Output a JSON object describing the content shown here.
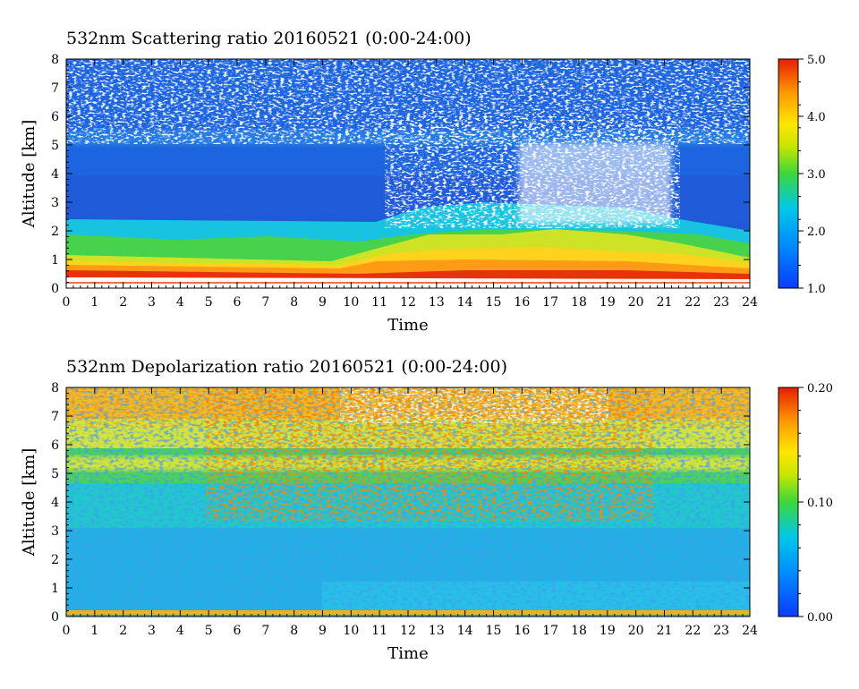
{
  "chart_data": [
    {
      "type": "heatmap",
      "title": "532nm Scattering ratio  20160521 (0:00-24:00)",
      "xlabel": "Time",
      "ylabel": "Altitude [km]",
      "xlim": [
        0,
        24
      ],
      "ylim": [
        0,
        8
      ],
      "x_ticks": [
        0,
        1,
        2,
        3,
        4,
        5,
        6,
        7,
        8,
        9,
        10,
        11,
        12,
        13,
        14,
        15,
        16,
        17,
        18,
        19,
        20,
        21,
        22,
        23,
        24
      ],
      "y_ticks": [
        0,
        1,
        2,
        3,
        4,
        5,
        6,
        7,
        8
      ],
      "colorbar": {
        "min": 1.0,
        "max": 5.0,
        "tick_values": [
          1.0,
          2.0,
          3.0,
          4.0,
          5.0
        ],
        "tick_labels": [
          "1.0",
          "2.0",
          "3.0",
          "4.0",
          "5.0"
        ],
        "colors": [
          "#0a3cff",
          "#00c8e6",
          "#3cd73c",
          "#ffe600",
          "#ff9b00",
          "#e61e00"
        ]
      },
      "grid": false
    },
    {
      "type": "heatmap",
      "title": "532nm Depolarization ratio  20160521 (0:00-24:00)",
      "xlabel": "Time",
      "ylabel": "Altitude [km]",
      "xlim": [
        0,
        24
      ],
      "ylim": [
        0,
        8
      ],
      "x_ticks": [
        0,
        1,
        2,
        3,
        4,
        5,
        6,
        7,
        8,
        9,
        10,
        11,
        12,
        13,
        14,
        15,
        16,
        17,
        18,
        19,
        20,
        21,
        22,
        23,
        24
      ],
      "y_ticks": [
        0,
        1,
        2,
        3,
        4,
        5,
        6,
        7,
        8
      ],
      "colorbar": {
        "min": 0.0,
        "max": 0.2,
        "tick_values": [
          0.0,
          0.1,
          0.2
        ],
        "tick_labels": [
          "0.00",
          "0.10",
          "0.20"
        ],
        "colors": [
          "#0a3cff",
          "#00c8e6",
          "#3cd73c",
          "#ffe600",
          "#ff9b00",
          "#e61e00"
        ]
      },
      "grid": false
    }
  ]
}
